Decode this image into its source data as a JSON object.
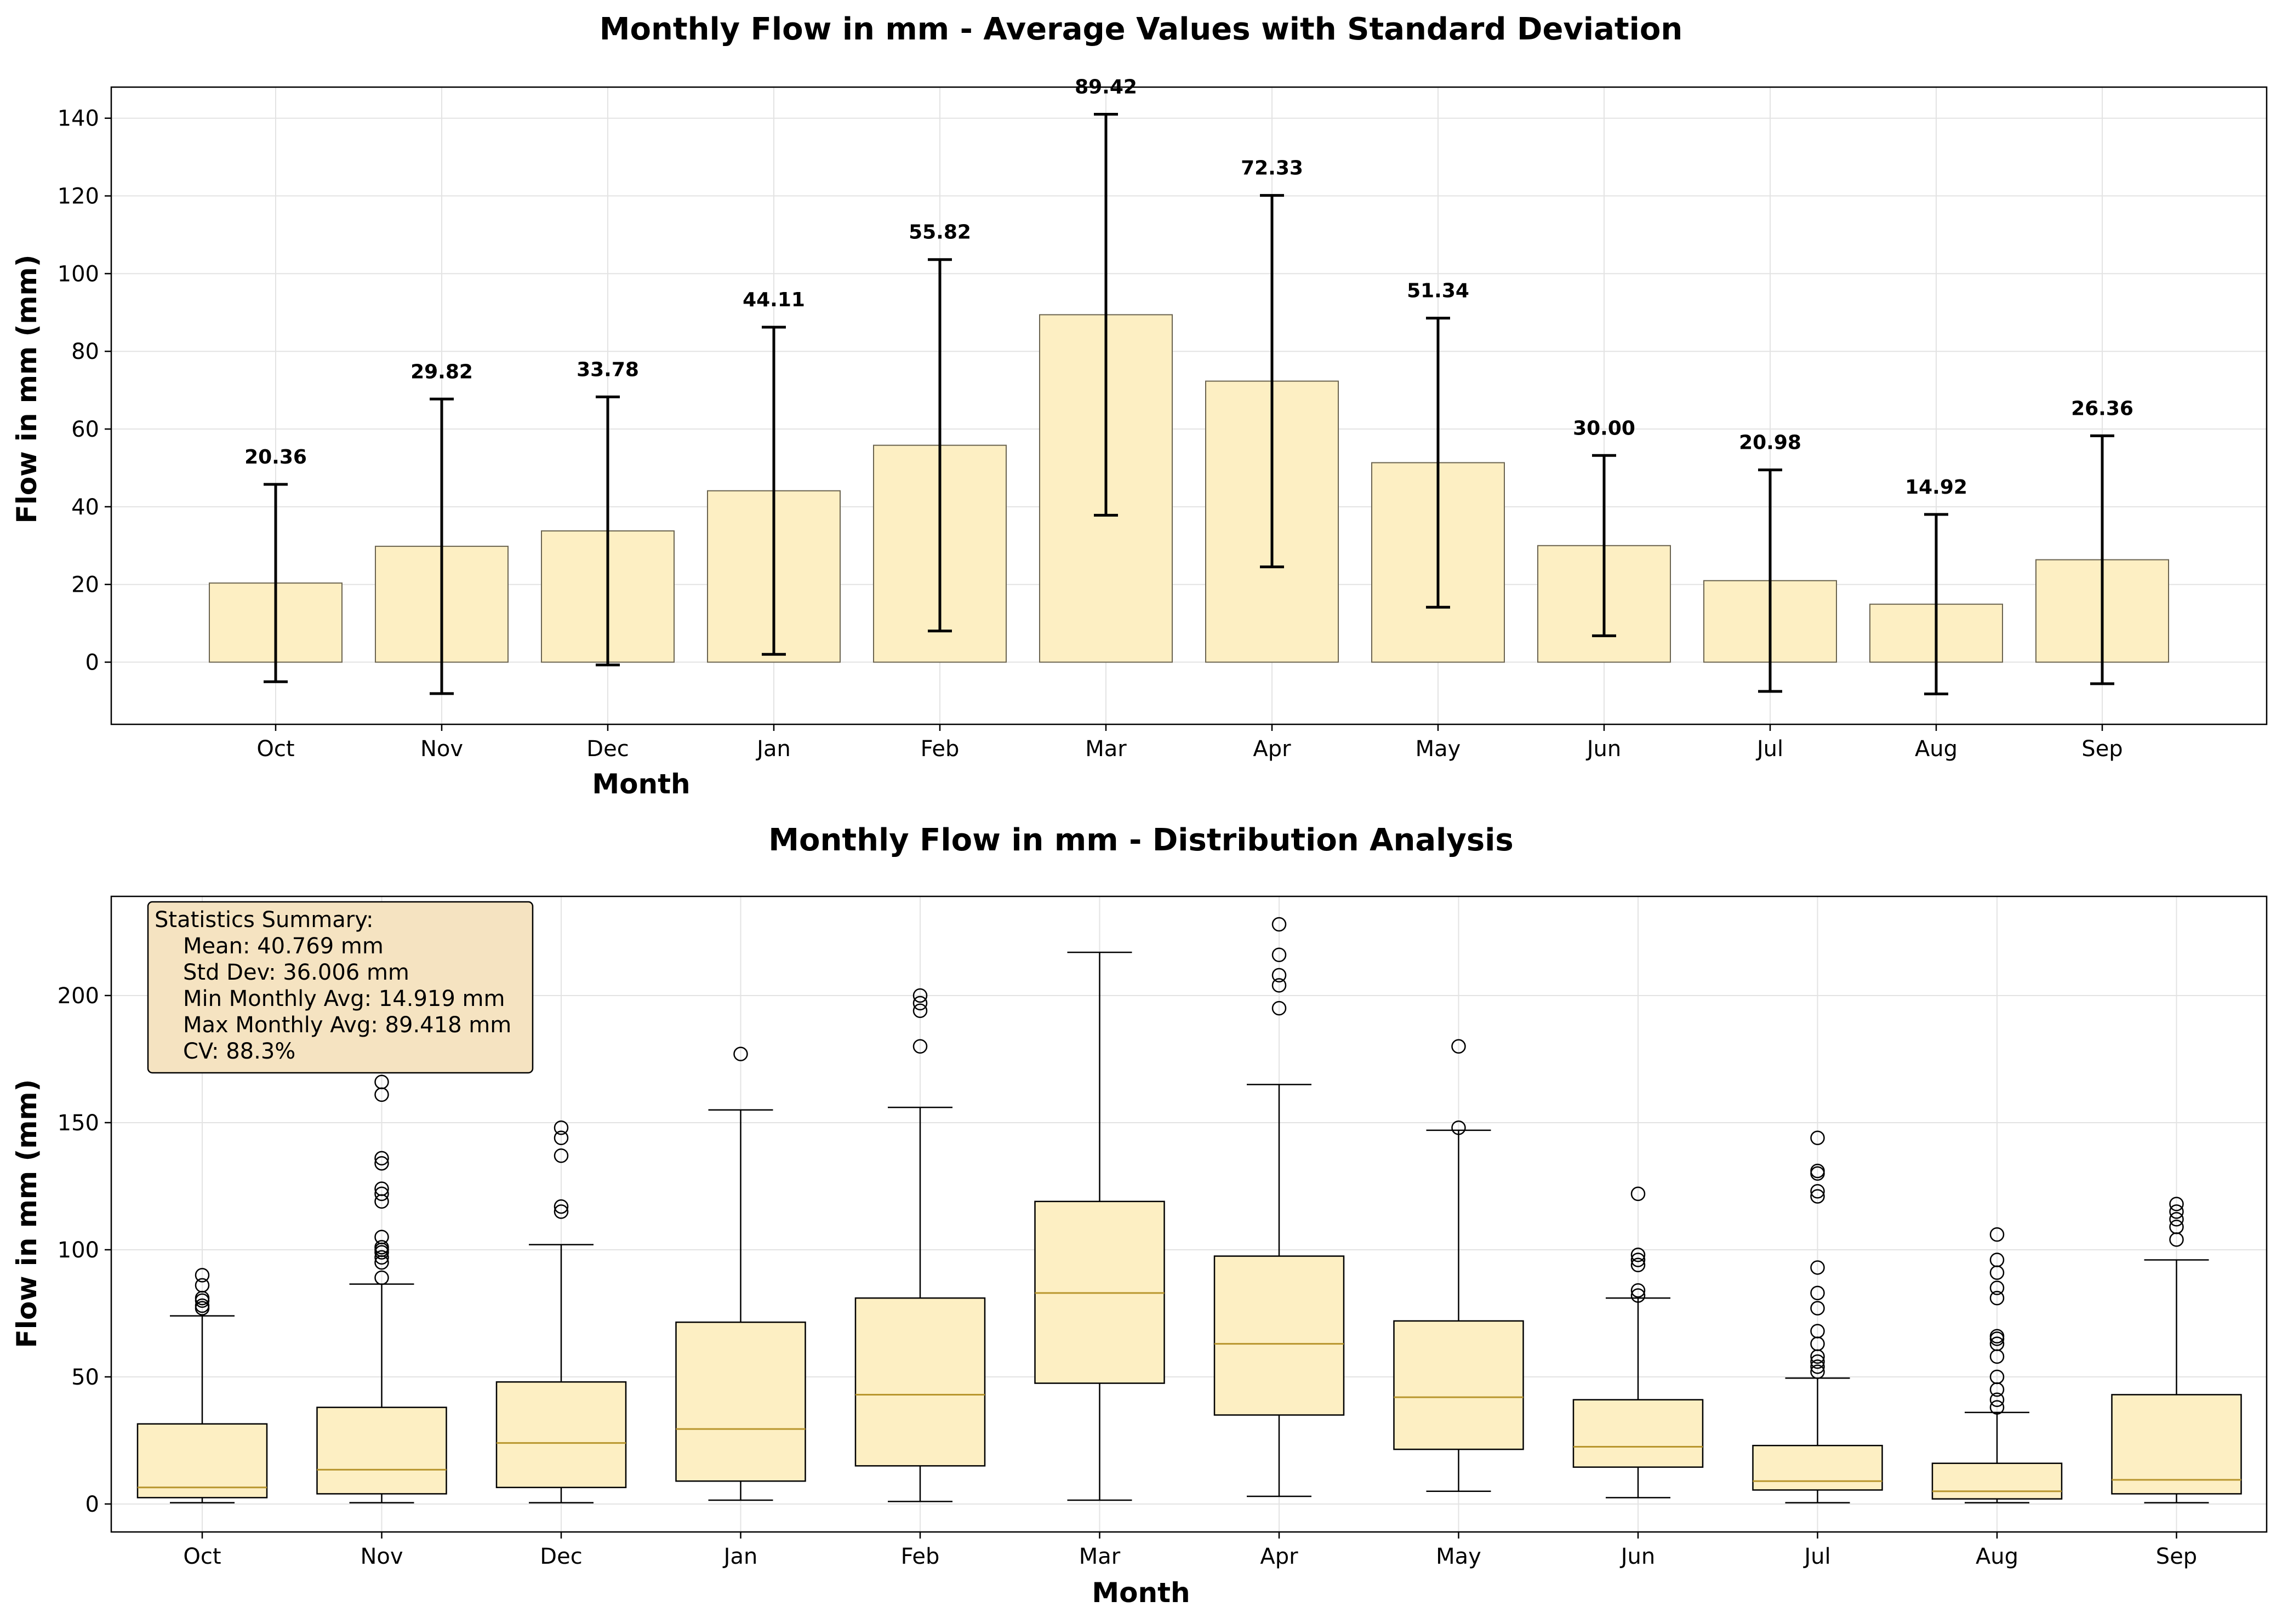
{
  "colors": {
    "bar_fill": "#fdefc3",
    "bar_edge": "#6b6450",
    "median": "#b8962e",
    "stats_bg": "#f5e3c1"
  },
  "chart_data": [
    {
      "type": "bar",
      "title": "Monthly Flow in mm - Average Values with Standard Deviation",
      "xlabel": "Month",
      "ylabel": "Flow in mm (mm)",
      "ylim": [
        -16,
        148
      ],
      "yticks": [
        0,
        20,
        40,
        60,
        80,
        100,
        120,
        140
      ],
      "grid": true,
      "categories": [
        "Oct",
        "Nov",
        "Dec",
        "Jan",
        "Feb",
        "Mar",
        "Apr",
        "May",
        "Jun",
        "Jul",
        "Aug",
        "Sep"
      ],
      "values": [
        20.36,
        29.82,
        33.78,
        44.11,
        55.82,
        89.42,
        72.33,
        51.34,
        30.0,
        20.98,
        14.92,
        26.36
      ],
      "value_labels": [
        "20.36",
        "29.82",
        "33.78",
        "44.11",
        "55.82",
        "89.42",
        "72.33",
        "51.34",
        "30.00",
        "20.98",
        "14.92",
        "26.36"
      ],
      "error": [
        25.4,
        37.9,
        34.5,
        42.1,
        47.8,
        51.6,
        47.8,
        37.2,
        23.2,
        28.5,
        23.1,
        31.9
      ]
    },
    {
      "type": "box",
      "title": "Monthly Flow in mm - Distribution Analysis",
      "xlabel": "Month",
      "ylabel": "Flow in mm (mm)",
      "ylim": [
        -11,
        239
      ],
      "yticks": [
        0,
        50,
        100,
        150,
        200
      ],
      "grid": true,
      "categories": [
        "Oct",
        "Nov",
        "Dec",
        "Jan",
        "Feb",
        "Mar",
        "Apr",
        "May",
        "Jun",
        "Jul",
        "Aug",
        "Sep"
      ],
      "boxes": [
        {
          "whislo": 0.5,
          "q1": 2.5,
          "med": 6.5,
          "q3": 31.5,
          "whishi": 74,
          "fliers": [
            77,
            78,
            80,
            81,
            86,
            90
          ]
        },
        {
          "whislo": 0.5,
          "q1": 4,
          "med": 13.5,
          "q3": 38,
          "whishi": 86.5,
          "fliers": [
            89,
            95,
            97,
            99,
            100,
            101,
            105,
            119,
            122,
            124,
            134,
            136,
            161,
            166
          ]
        },
        {
          "whislo": 0.5,
          "q1": 6.5,
          "med": 24,
          "q3": 48,
          "whishi": 102,
          "fliers": [
            115,
            117,
            137,
            144,
            148
          ]
        },
        {
          "whislo": 1.5,
          "q1": 9,
          "med": 29.5,
          "q3": 71.5,
          "whishi": 155,
          "fliers": [
            177
          ]
        },
        {
          "whislo": 1,
          "q1": 15,
          "med": 43,
          "q3": 81,
          "whishi": 156,
          "fliers": [
            180,
            194,
            197,
            200
          ]
        },
        {
          "whislo": 1.5,
          "q1": 47.5,
          "med": 83,
          "q3": 119,
          "whishi": 217,
          "fliers": []
        },
        {
          "whislo": 3,
          "q1": 35,
          "med": 63,
          "q3": 97.5,
          "whishi": 165,
          "fliers": [
            195,
            204,
            208,
            216,
            228
          ]
        },
        {
          "whislo": 5,
          "q1": 21.5,
          "med": 42,
          "q3": 72,
          "whishi": 147,
          "fliers": [
            148,
            180
          ]
        },
        {
          "whislo": 2.5,
          "q1": 14.5,
          "med": 22.5,
          "q3": 41,
          "whishi": 81,
          "fliers": [
            82,
            84,
            94,
            96,
            98,
            122
          ]
        },
        {
          "whislo": 0.5,
          "q1": 5.5,
          "med": 9,
          "q3": 23,
          "whishi": 49.5,
          "fliers": [
            52,
            54,
            56,
            58,
            63,
            68,
            77,
            83,
            93,
            121,
            123,
            130,
            131,
            144
          ]
        },
        {
          "whislo": 0.5,
          "q1": 2,
          "med": 5,
          "q3": 16,
          "whishi": 36,
          "fliers": [
            38,
            41,
            45,
            50,
            58,
            63,
            65,
            66,
            81,
            85,
            91,
            96,
            106
          ]
        },
        {
          "whislo": 0.5,
          "q1": 4,
          "med": 9.5,
          "q3": 43,
          "whishi": 96,
          "fliers": [
            104,
            109,
            112,
            115,
            118
          ]
        }
      ],
      "stats_box": {
        "title": "Statistics Summary:",
        "lines": [
          "Mean: 40.769 mm",
          "Std Dev: 36.006 mm",
          "Min Monthly Avg: 14.919 mm",
          "Max Monthly Avg: 89.418 mm",
          "CV: 88.3%"
        ]
      }
    }
  ]
}
